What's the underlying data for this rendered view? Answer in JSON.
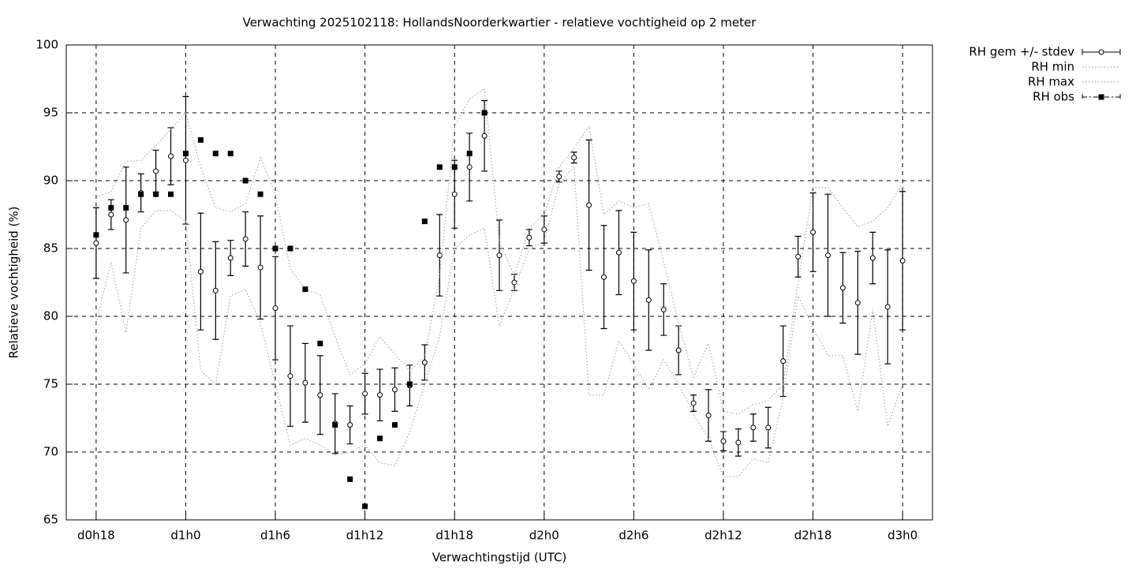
{
  "chart_data": {
    "type": "errorbar",
    "title": "Verwachting 2025102118: HollandsNoorderkwartier - relatieve vochtigheid op 2 meter",
    "xlabel": "Verwachtingstijd (UTC)",
    "ylabel": "Relatieve vochtigheid (%)",
    "x": [
      18,
      19,
      20,
      21,
      22,
      23,
      24,
      25,
      26,
      27,
      28,
      29,
      30,
      31,
      32,
      33,
      34,
      35,
      36,
      37,
      38,
      39,
      40,
      41,
      42,
      43,
      44,
      45,
      46,
      47,
      48,
      49,
      50,
      51,
      52,
      53,
      54,
      55,
      56,
      57,
      58,
      59,
      60,
      61,
      62,
      63,
      64,
      65,
      66,
      67,
      68,
      69,
      70,
      71,
      72
    ],
    "series": [
      {
        "name": "RH gem +/- stdev",
        "style": "errorbars",
        "color": "#000000",
        "values": [
          85.4,
          87.5,
          87.1,
          89.1,
          90.7,
          91.8,
          91.5,
          83.3,
          81.9,
          84.3,
          85.7,
          83.6,
          80.6,
          75.6,
          75.1,
          74.2,
          72.1,
          72.0,
          74.3,
          74.2,
          74.6,
          74.9,
          76.6,
          84.5,
          89.0,
          91.0,
          93.3,
          84.5,
          82.5,
          85.8,
          86.4,
          90.3,
          91.7,
          88.2,
          82.9,
          84.7,
          82.6,
          81.2,
          80.5,
          77.5,
          73.6,
          72.7,
          70.8,
          70.7,
          71.8,
          71.8,
          76.7,
          84.4,
          86.2,
          84.5,
          82.1,
          81.0,
          84.3,
          80.7,
          84.1
        ],
        "errors": [
          2.6,
          1.1,
          3.9,
          1.4,
          1.55,
          2.1,
          4.7,
          4.3,
          3.6,
          1.3,
          2.0,
          3.8,
          3.8,
          3.7,
          2.9,
          2.9,
          2.2,
          1.4,
          1.5,
          1.9,
          1.6,
          1.5,
          1.3,
          3.0,
          2.5,
          2.5,
          2.6,
          2.6,
          0.6,
          0.6,
          1.0,
          0.4,
          0.4,
          4.8,
          3.8,
          3.1,
          3.6,
          3.7,
          1.9,
          1.8,
          0.6,
          1.9,
          0.7,
          1.0,
          1.0,
          1.5,
          2.6,
          1.5,
          2.9,
          4.5,
          2.6,
          3.8,
          1.9,
          4.2,
          5.1
        ]
      },
      {
        "name": "RH min",
        "style": "dotted-line",
        "color": "#aaaaaa",
        "values": [
          79.5,
          84.0,
          78.8,
          86.5,
          87.8,
          87.8,
          87.0,
          76.0,
          75.0,
          81.5,
          82.0,
          79.5,
          75.0,
          70.5,
          71.0,
          70.5,
          69.8,
          70.0,
          70.5,
          69.2,
          69.0,
          71.5,
          75.0,
          78.5,
          85.0,
          86.0,
          86.5,
          79.3,
          82.0,
          85.0,
          85.5,
          89.8,
          91.0,
          74.2,
          74.2,
          78.2,
          76.5,
          74.6,
          76.8,
          75.0,
          72.8,
          71.0,
          68.2,
          68.2,
          69.5,
          69.2,
          74.0,
          81.5,
          79.2,
          77.1,
          77.1,
          73.0,
          80.5,
          71.9,
          75.0
        ]
      },
      {
        "name": "RH max",
        "style": "dotted-line",
        "color": "#aaaaaa",
        "values": [
          88.8,
          89.2,
          91.4,
          91.5,
          92.6,
          93.8,
          95.0,
          91.0,
          88.0,
          87.7,
          88.3,
          91.7,
          89.0,
          83.5,
          82.0,
          81.6,
          78.5,
          75.7,
          76.5,
          78.5,
          77.2,
          76.0,
          77.0,
          83.0,
          94.0,
          96.0,
          96.8,
          85.5,
          83.0,
          86.5,
          87.5,
          91.0,
          92.4,
          94.0,
          87.5,
          88.5,
          88.0,
          88.3,
          84.0,
          79.5,
          75.5,
          78.0,
          73.0,
          72.8,
          73.5,
          73.8,
          75.0,
          82.5,
          89.5,
          89.5,
          88.0,
          86.6,
          87.0,
          88.0,
          89.8
        ]
      },
      {
        "name": "RH obs",
        "style": "points",
        "color": "#000000",
        "values": [
          86,
          88,
          88,
          89,
          89,
          89,
          92,
          93,
          92,
          92,
          90,
          89,
          85,
          85,
          82,
          78,
          72,
          68,
          66,
          71,
          72,
          75,
          87,
          91,
          91,
          92,
          95,
          null,
          null,
          null,
          null,
          null,
          null,
          null,
          null,
          null,
          null,
          null,
          null,
          null,
          null,
          null,
          null,
          null,
          null,
          null,
          null,
          null,
          null,
          null,
          null,
          null,
          null,
          null,
          null
        ]
      }
    ],
    "xlim": [
      16,
      74
    ],
    "xticks": [
      {
        "value": 18,
        "label": "d0h18"
      },
      {
        "value": 24,
        "label": "d1h0"
      },
      {
        "value": 30,
        "label": "d1h6"
      },
      {
        "value": 36,
        "label": "d1h12"
      },
      {
        "value": 42,
        "label": "d1h18"
      },
      {
        "value": 48,
        "label": "d2h0"
      },
      {
        "value": 54,
        "label": "d2h6"
      },
      {
        "value": 60,
        "label": "d2h12"
      },
      {
        "value": 66,
        "label": "d2h18"
      },
      {
        "value": 72,
        "label": "d3h0"
      }
    ],
    "ylim": [
      65,
      100
    ],
    "yticks": [
      65,
      70,
      75,
      80,
      85,
      90,
      95,
      100
    ],
    "grid": true,
    "legend": "outside-top-right"
  }
}
